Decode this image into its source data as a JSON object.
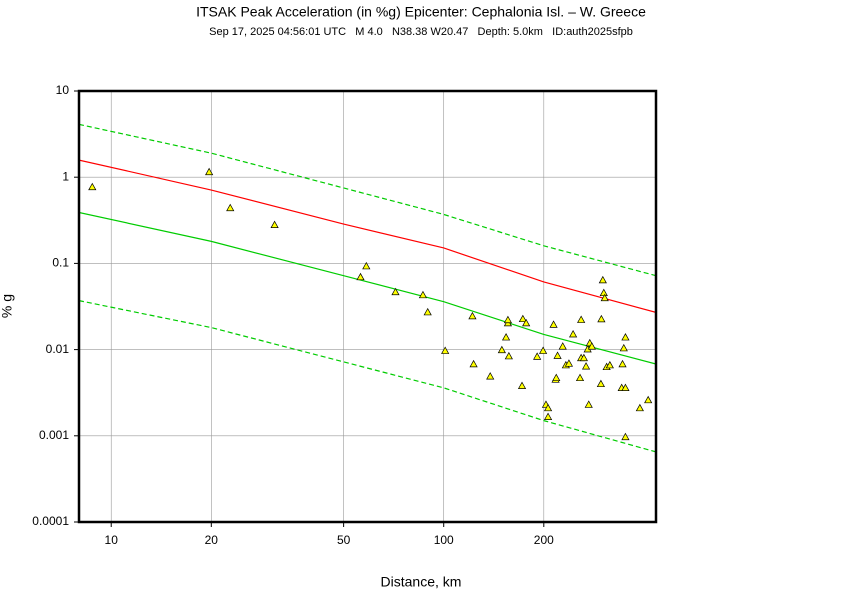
{
  "chart_data": {
    "type": "scatter",
    "title": "ITSAK Peak Acceleration (in %g) Epicenter: Cephalonia Isl. – W. Greece",
    "subtitle": "Sep 17, 2025 04:56:01 UTC   M 4.0   N38.38 W20.47   Depth: 5.0km   ID:auth2025sfpb",
    "x_label": "Distance, km",
    "y_label": "% g",
    "xlog": true,
    "ylog": true,
    "grid": true,
    "xlim": [
      8,
      435
    ],
    "ylim": [
      0.0001,
      10
    ],
    "xticks": [
      10,
      20,
      50,
      100,
      200
    ],
    "yticks": [
      0.0001,
      0.001,
      0.01,
      0.1,
      1,
      10
    ],
    "series": [
      {
        "type": "line",
        "color": "#00cc00",
        "dashed": true,
        "x": [
          8,
          20,
          50,
          100,
          200,
          435
        ],
        "values": [
          4.1,
          1.9,
          0.75,
          0.37,
          0.16,
          0.072
        ]
      },
      {
        "type": "line",
        "color": "#ff0000",
        "dashed": false,
        "x": [
          8,
          20,
          50,
          100,
          200,
          435
        ],
        "values": [
          1.58,
          0.71,
          0.286,
          0.151,
          0.061,
          0.027
        ]
      },
      {
        "type": "line",
        "color": "#00cc00",
        "dashed": false,
        "x": [
          8,
          20,
          50,
          100,
          200,
          435
        ],
        "values": [
          0.39,
          0.18,
          0.072,
          0.036,
          0.015,
          0.0068
        ]
      },
      {
        "type": "line",
        "color": "#00cc00",
        "dashed": true,
        "x": [
          8,
          20,
          50,
          100,
          200,
          435
        ],
        "values": [
          0.037,
          0.018,
          0.0072,
          0.0036,
          0.0015,
          0.00065
        ]
      },
      {
        "type": "scatter",
        "color": "#ffff00",
        "marker": "triangle",
        "x": [
          8.77,
          19.7,
          22.8,
          31,
          56.2,
          58.5,
          71.6,
          86.6,
          89.5,
          101,
          122,
          123,
          138,
          149.6,
          154,
          156,
          156,
          157,
          172,
          173,
          177,
          191,
          199,
          203,
          206,
          206,
          214,
          217,
          218,
          220,
          228,
          233,
          238,
          245,
          257,
          259,
          264,
          259,
          268,
          271,
          275,
          279,
          273,
          297,
          298,
          301,
          303,
          305,
          309,
          316,
          343,
          352,
          345,
          348,
          352,
          352,
          389,
          412
        ],
        "values": [
          0.77,
          1.15,
          0.44,
          0.28,
          0.0695,
          0.093,
          0.0466,
          0.043,
          0.0272,
          0.0097,
          0.0245,
          0.0068,
          0.0049,
          0.0099,
          0.0139,
          0.0203,
          0.0221,
          0.0084,
          0.0038,
          0.0227,
          0.0203,
          0.0083,
          0.0097,
          0.0023,
          0.0021,
          0.00166,
          0.0195,
          0.0045,
          0.0047,
          0.0085,
          0.0109,
          0.0066,
          0.0069,
          0.0151,
          0.0047,
          0.008,
          0.008,
          0.0222,
          0.0064,
          0.0101,
          0.0119,
          0.0109,
          0.0023,
          0.004,
          0.0226,
          0.064,
          0.0455,
          0.0397,
          0.0063,
          0.0066,
          0.0036,
          0.0036,
          0.0068,
          0.0104,
          0.0139,
          0.00097,
          0.0021,
          0.0026
        ]
      }
    ]
  }
}
